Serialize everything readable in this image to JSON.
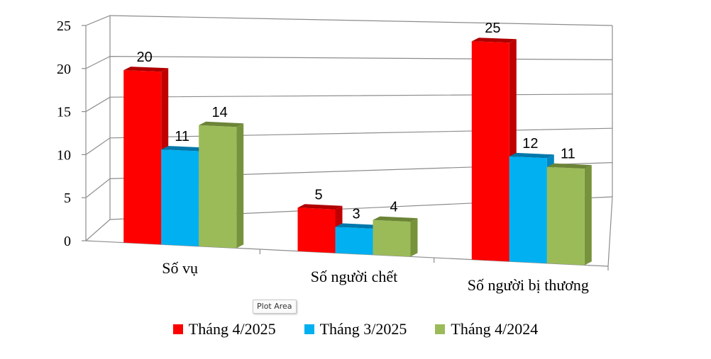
{
  "chart_data": {
    "type": "bar",
    "categories": [
      "Số vụ",
      "Số người chết",
      "Số người bị thương"
    ],
    "series": [
      {
        "name": "Tháng 4/2025",
        "values": [
          20,
          5,
          25
        ],
        "color": "#FF0000",
        "side": "#C00000",
        "top": "#B00000"
      },
      {
        "name": "Tháng 3/2025",
        "values": [
          11,
          3,
          12
        ],
        "color": "#00B0F0",
        "side": "#0086C0",
        "top": "#0077AA"
      },
      {
        "name": "Tháng 4/2024",
        "values": [
          14,
          4,
          11
        ],
        "color": "#9BBB59",
        "side": "#76933C",
        "top": "#6B8436"
      }
    ],
    "y_ticks": [
      "0",
      "5",
      "10",
      "15",
      "20",
      "25"
    ],
    "ylim": [
      0,
      25
    ],
    "grid": true,
    "legend_position": "bottom",
    "three_d": true
  },
  "tooltip": "Plot Area"
}
